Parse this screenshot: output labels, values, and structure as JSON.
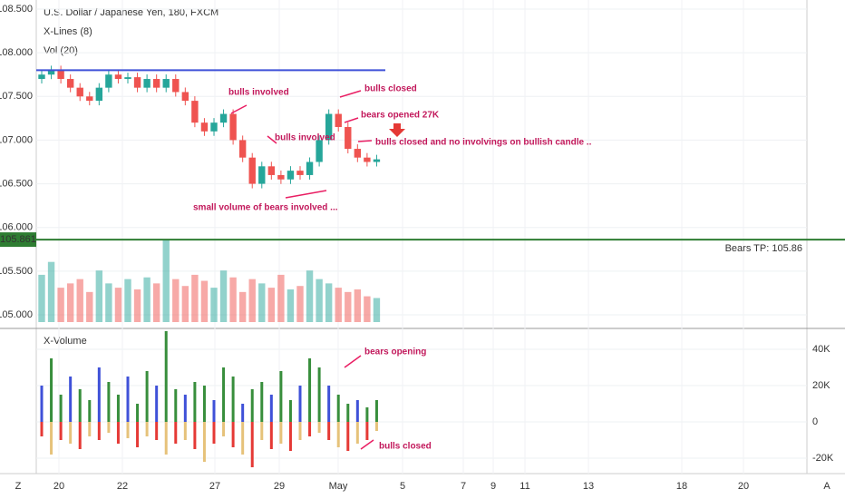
{
  "chart_data": {
    "type": "candlestick",
    "title": "U.S. Dollar / Japanese Yen, 180, FXCM",
    "indicators": [
      "X-Lines (8)",
      "Vol (20)"
    ],
    "lower_title": "X-Volume",
    "ylim": [
      105,
      108.5
    ],
    "yticks": [
      {
        "value": 105,
        "label": "105.000"
      },
      {
        "value": 105.5,
        "label": "105.500"
      },
      {
        "value": 106,
        "label": "106.000"
      },
      {
        "value": 106.5,
        "label": "106.500"
      },
      {
        "value": 107,
        "label": "107.000"
      },
      {
        "value": 107.5,
        "label": "107.500"
      },
      {
        "value": 108,
        "label": "108.000"
      },
      {
        "value": 108.5,
        "label": "108.500"
      }
    ],
    "target": {
      "value": 105.861,
      "price_label": "105.861",
      "label": "Bears TP: 105.86"
    },
    "xline": 107.8,
    "first_open": 107.7,
    "closes": [
      107.75,
      107.8,
      107.7,
      107.6,
      107.5,
      107.45,
      107.6,
      107.75,
      107.7,
      107.72,
      107.6,
      107.7,
      107.6,
      107.7,
      107.55,
      107.45,
      107.2,
      107.1,
      107.2,
      107.3,
      107.0,
      106.8,
      106.5,
      106.7,
      106.6,
      106.55,
      106.65,
      106.6,
      106.75,
      107.0,
      107.3,
      107.15,
      106.9,
      106.8,
      106.75,
      106.78
    ],
    "volumes": [
      55,
      70,
      40,
      45,
      50,
      35,
      60,
      45,
      40,
      50,
      38,
      52,
      45,
      95,
      50,
      42,
      55,
      48,
      40,
      60,
      52,
      35,
      50,
      45,
      40,
      55,
      38,
      42,
      60,
      50,
      45,
      40,
      35,
      38,
      30,
      28
    ],
    "xvol_up": [
      20,
      35,
      15,
      25,
      18,
      12,
      30,
      22,
      15,
      25,
      10,
      28,
      20,
      50,
      18,
      15,
      22,
      20,
      12,
      30,
      25,
      10,
      18,
      22,
      15,
      28,
      12,
      20,
      35,
      30,
      20,
      15,
      10,
      12,
      8,
      12
    ],
    "xvol_down": [
      -8,
      -18,
      -10,
      -12,
      -15,
      -8,
      -10,
      -6,
      -12,
      -9,
      -14,
      -8,
      -10,
      -18,
      -12,
      -10,
      -15,
      -22,
      -12,
      -8,
      -14,
      -18,
      -25,
      -10,
      -15,
      -12,
      -16,
      -10,
      -8,
      -6,
      -10,
      -14,
      -16,
      -12,
      -10,
      -5
    ],
    "y2lim": [
      -28,
      48
    ],
    "y2ticks": [
      {
        "value": 40,
        "label": "40K"
      },
      {
        "value": 20,
        "label": "20K"
      },
      0,
      {
        "value": -20,
        "label": "-20K"
      }
    ],
    "dates": [
      "20",
      "22",
      "27",
      "29",
      "May",
      "5",
      "7",
      "9",
      "11",
      "13",
      "18",
      "20"
    ],
    "annotations": [
      "bulls involved",
      "bulls closed",
      "bears opened 27K",
      "bulls involved",
      "bulls closed and no involvings on bullish candle ..",
      "small volume of bears involved ...",
      "bears opening",
      "bulls closed"
    ],
    "corners": [
      "Z",
      "A"
    ],
    "up_color": "#26a69a",
    "down_color": "#ef5350",
    "target_color": "#2e7d32",
    "xline_color": "#3f51d8"
  }
}
